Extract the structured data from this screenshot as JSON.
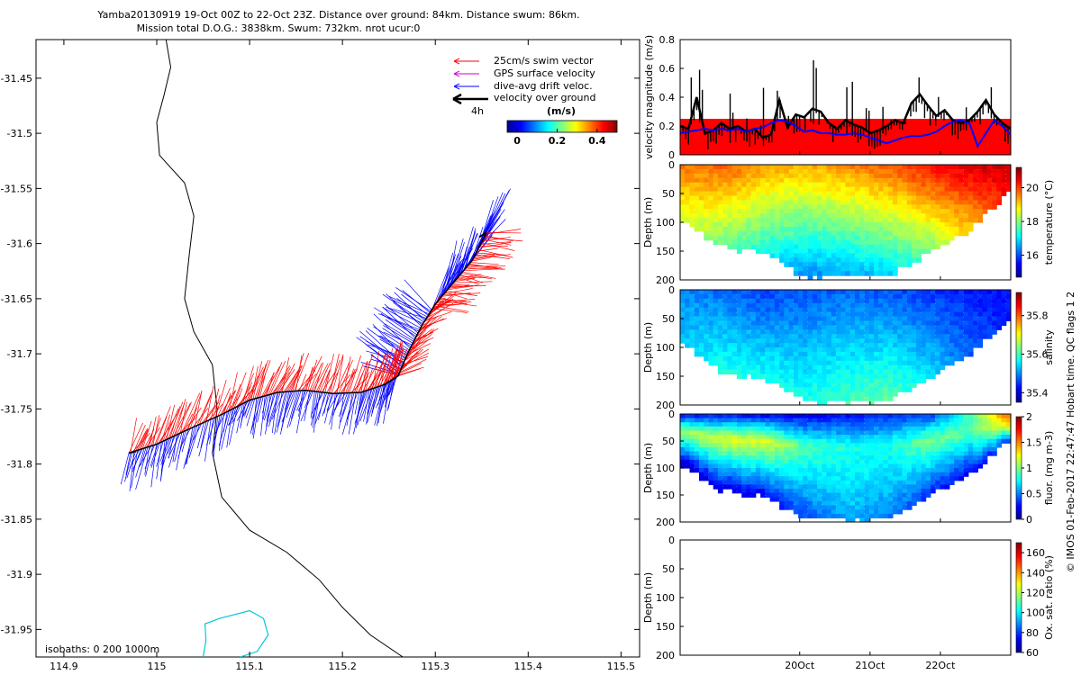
{
  "header": {
    "title_line1": "Yamba20130919 19-Oct 00Z to 22-Oct 23Z. Distance over ground: 84km. Distance swum: 86km.",
    "title_line2": "Mission total D.O.G.: 3838km. Swum: 732km. nrot ucur:0"
  },
  "side_credit": "© IMOS 01-Feb-2017 22:47:47 Hobart time. QC flags 1  2",
  "colors": {
    "swim": "#ff0000",
    "gps": "#cc00cc",
    "drift": "#0000ff",
    "ground": "#000000",
    "coast": "#000000",
    "isobath": "#00c8d8",
    "velocity_band": "#ff0000",
    "velocity_line": "#0000ff"
  },
  "chart_data": [
    {
      "id": "track_map",
      "type": "scatter",
      "title": "",
      "xlabel": "",
      "ylabel": "",
      "xlim": [
        114.87,
        115.52
      ],
      "ylim": [
        -31.975,
        -31.415
      ],
      "x_ticks": [
        "114.9",
        "115",
        "115.1",
        "115.2",
        "115.3",
        "115.4",
        "115.5"
      ],
      "x_tick_values": [
        114.9,
        115.0,
        115.1,
        115.2,
        115.3,
        115.4,
        115.5
      ],
      "y_ticks": [
        "-31.45",
        "-31.5",
        "-31.55",
        "-31.6",
        "-31.65",
        "-31.7",
        "-31.75",
        "-31.8",
        "-31.85",
        "-31.9",
        "-31.95"
      ],
      "y_tick_values": [
        -31.45,
        -31.5,
        -31.55,
        -31.6,
        -31.65,
        -31.7,
        -31.75,
        -31.8,
        -31.85,
        -31.9,
        -31.95
      ],
      "legend": {
        "placement": "top-right",
        "entries": [
          "25cm/s swim vector",
          "GPS surface velocity",
          "dive-avg drift veloc.",
          "velocity over ground"
        ],
        "scale_label": "4h",
        "colorbar_title": "(m/s)",
        "colorbar_ticks": [
          "0",
          "0.2",
          "0.4"
        ],
        "colorbar_tick_values": [
          0,
          0.2,
          0.4
        ],
        "colorbar_range": [
          -0.05,
          0.5
        ]
      },
      "isobaths_label": "isobaths: 0   200  1000m",
      "coastline_0m": [
        [
          115.01,
          -31.415
        ],
        [
          115.015,
          -31.44
        ],
        [
          115.008,
          -31.465
        ],
        [
          115.0,
          -31.49
        ],
        [
          115.003,
          -31.52
        ],
        [
          115.03,
          -31.545
        ],
        [
          115.04,
          -31.575
        ],
        [
          115.035,
          -31.61
        ],
        [
          115.03,
          -31.65
        ],
        [
          115.04,
          -31.68
        ],
        [
          115.06,
          -31.71
        ],
        [
          115.065,
          -31.75
        ],
        [
          115.06,
          -31.79
        ],
        [
          115.07,
          -31.83
        ],
        [
          115.1,
          -31.86
        ],
        [
          115.14,
          -31.88
        ],
        [
          115.175,
          -31.905
        ],
        [
          115.2,
          -31.93
        ],
        [
          115.23,
          -31.955
        ],
        [
          115.265,
          -31.975
        ]
      ],
      "isobath_200m": [
        [
          115.05,
          -31.975
        ],
        [
          115.053,
          -31.96
        ],
        [
          115.052,
          -31.945
        ],
        [
          115.068,
          -31.94
        ],
        [
          115.1,
          -31.933
        ],
        [
          115.115,
          -31.94
        ],
        [
          115.12,
          -31.955
        ],
        [
          115.108,
          -31.97
        ],
        [
          115.09,
          -31.975
        ]
      ],
      "track_over_ground": [
        [
          114.97,
          -31.79
        ],
        [
          115.0,
          -31.782
        ],
        [
          115.03,
          -31.77
        ],
        [
          115.07,
          -31.755
        ],
        [
          115.1,
          -31.742
        ],
        [
          115.13,
          -31.735
        ],
        [
          115.16,
          -31.733
        ],
        [
          115.19,
          -31.736
        ],
        [
          115.22,
          -31.735
        ],
        [
          115.245,
          -31.728
        ],
        [
          115.26,
          -31.72
        ],
        [
          115.27,
          -31.7
        ],
        [
          115.285,
          -31.675
        ],
        [
          115.3,
          -31.655
        ],
        [
          115.32,
          -31.635
        ],
        [
          115.34,
          -31.615
        ],
        [
          115.355,
          -31.59
        ]
      ],
      "start_position": [
        115.355,
        -31.59
      ],
      "end_position": [
        114.97,
        -31.79
      ]
    },
    {
      "id": "velocity_magnitude",
      "type": "line",
      "xlabel": "",
      "ylabel": "velocity magnitude (m/s)",
      "ylim": [
        0,
        0.8
      ],
      "y_ticks": [
        "0",
        "0.2",
        "0.4",
        "0.6",
        "0.8"
      ],
      "y_tick_values": [
        0,
        0.2,
        0.4,
        0.6,
        0.8
      ],
      "band_top": 0.25,
      "x": [
        0,
        0.1,
        0.2,
        0.3,
        0.4,
        0.5,
        0.6,
        0.7,
        0.8,
        0.9,
        1.0,
        1.1,
        1.2,
        1.3,
        1.4,
        1.5,
        1.6,
        1.7,
        1.8,
        1.9,
        2.0,
        2.1,
        2.2,
        2.3,
        2.4,
        2.5,
        2.6,
        2.7,
        2.8,
        2.9,
        3.0,
        3.1,
        3.2,
        3.3,
        3.4,
        3.5,
        3.6,
        3.7,
        3.8,
        3.9,
        4.0
      ],
      "series": [
        {
          "name": "velocity over ground",
          "values": [
            0.2,
            0.18,
            0.4,
            0.15,
            0.17,
            0.22,
            0.18,
            0.2,
            0.16,
            0.18,
            0.12,
            0.14,
            0.38,
            0.19,
            0.28,
            0.26,
            0.32,
            0.3,
            0.22,
            0.18,
            0.24,
            0.21,
            0.19,
            0.15,
            0.17,
            0.2,
            0.24,
            0.22,
            0.36,
            0.42,
            0.34,
            0.27,
            0.31,
            0.24,
            0.22,
            0.24,
            0.3,
            0.38,
            0.28,
            0.22,
            0.18
          ]
        },
        {
          "name": "dive-avg drift veloc.",
          "values": [
            0.15,
            0.16,
            0.17,
            0.18,
            0.17,
            0.18,
            0.17,
            0.18,
            0.16,
            0.18,
            0.19,
            0.22,
            0.24,
            0.23,
            0.2,
            0.16,
            0.17,
            0.15,
            0.15,
            0.14,
            0.14,
            0.15,
            0.14,
            0.12,
            0.1,
            0.08,
            0.1,
            0.12,
            0.13,
            0.13,
            0.14,
            0.16,
            0.2,
            0.23,
            0.24,
            0.22,
            0.06,
            0.15,
            0.24,
            0.2,
            0.14
          ]
        }
      ]
    },
    {
      "id": "temperature_section",
      "type": "heatmap",
      "ylabel": "Depth (m)",
      "colorbar_label": "temperature (°C)",
      "ylim": [
        200,
        0
      ],
      "y_ticks": [
        "0",
        "50",
        "100",
        "150",
        "200"
      ],
      "y_tick_values": [
        0,
        50,
        100,
        150,
        200
      ],
      "colorbar_ticks": [
        "16",
        "18",
        "20"
      ],
      "colorbar_tick_values": [
        16,
        18,
        20
      ],
      "colorbar_range": [
        14.7,
        21.2
      ],
      "x": [
        0,
        0.5,
        1,
        1.5,
        2,
        2.5,
        3,
        3.5,
        4
      ],
      "bottom_depth": [
        90,
        140,
        150,
        190,
        190,
        190,
        150,
        110,
        40
      ],
      "surface_value": [
        19.6,
        19.8,
        19.4,
        19.2,
        19.5,
        19.8,
        20.3,
        20.6,
        20.8
      ],
      "deep_value": [
        17.5,
        17.0,
        16.6,
        16.4,
        16.5,
        16.8,
        17.2,
        18.0,
        19.0
      ]
    },
    {
      "id": "salinity_section",
      "type": "heatmap",
      "ylabel": "Depth (m)",
      "colorbar_label": "salinity",
      "ylim": [
        200,
        0
      ],
      "y_ticks": [
        "0",
        "50",
        "100",
        "150",
        "200"
      ],
      "y_tick_values": [
        0,
        50,
        100,
        150,
        200
      ],
      "colorbar_ticks": [
        "35.4",
        "35.6",
        "35.8"
      ],
      "colorbar_tick_values": [
        35.4,
        35.6,
        35.8
      ],
      "colorbar_range": [
        35.35,
        35.92
      ],
      "x": [
        0,
        0.5,
        1,
        1.5,
        2,
        2.5,
        3,
        3.5,
        4
      ],
      "bottom_depth": [
        90,
        140,
        150,
        190,
        190,
        190,
        150,
        110,
        40
      ],
      "surface_value": [
        35.5,
        35.48,
        35.46,
        35.47,
        35.48,
        35.47,
        35.45,
        35.44,
        35.43
      ],
      "deep_value": [
        35.58,
        35.62,
        35.6,
        35.58,
        35.6,
        35.62,
        35.58,
        35.5,
        35.45
      ]
    },
    {
      "id": "fluorescence_section",
      "type": "heatmap",
      "ylabel": "Depth (m)",
      "colorbar_label": "fluor. (mg m-3)",
      "ylim": [
        200,
        0
      ],
      "y_ticks": [
        "0",
        "50",
        "100",
        "150",
        "200"
      ],
      "y_tick_values": [
        0,
        50,
        100,
        150,
        200
      ],
      "colorbar_ticks": [
        "0",
        "0.5",
        "1",
        "1.5",
        "2"
      ],
      "colorbar_tick_values": [
        0,
        0.5,
        1,
        1.5,
        2
      ],
      "colorbar_range": [
        0,
        2
      ],
      "x": [
        0,
        0.5,
        1,
        1.5,
        2,
        2.5,
        3,
        3.5,
        4
      ],
      "bottom_depth": [
        90,
        140,
        150,
        190,
        190,
        190,
        150,
        110,
        40
      ],
      "surface_value": [
        0.3,
        0.35,
        0.3,
        0.25,
        0.3,
        0.35,
        0.4,
        0.9,
        1.6
      ],
      "mid_value": [
        1.1,
        1.2,
        1.2,
        0.9,
        0.8,
        0.8,
        1.0,
        0.9,
        1.4
      ],
      "deep_value": [
        0.1,
        0.15,
        0.2,
        0.4,
        0.6,
        0.5,
        0.3,
        0.2,
        0.4
      ]
    },
    {
      "id": "oxygen_section",
      "type": "heatmap",
      "ylabel": "Depth (m)",
      "colorbar_label": "Ox. sat. ratio (%)",
      "ylim": [
        200,
        0
      ],
      "y_ticks": [
        "0",
        "50",
        "100",
        "150",
        "200"
      ],
      "y_tick_values": [
        0,
        50,
        100,
        150,
        200
      ],
      "colorbar_ticks": [
        "60",
        "80",
        "100",
        "120",
        "140",
        "160"
      ],
      "colorbar_tick_values": [
        60,
        80,
        100,
        120,
        140,
        160
      ],
      "colorbar_range": [
        60,
        170
      ],
      "x_ticks": [
        "20Oct",
        "21Oct",
        "22Oct"
      ],
      "x_tick_values": [
        1.0,
        2.0,
        3.0
      ],
      "xlim": [
        -0.7,
        4.0
      ]
    }
  ]
}
